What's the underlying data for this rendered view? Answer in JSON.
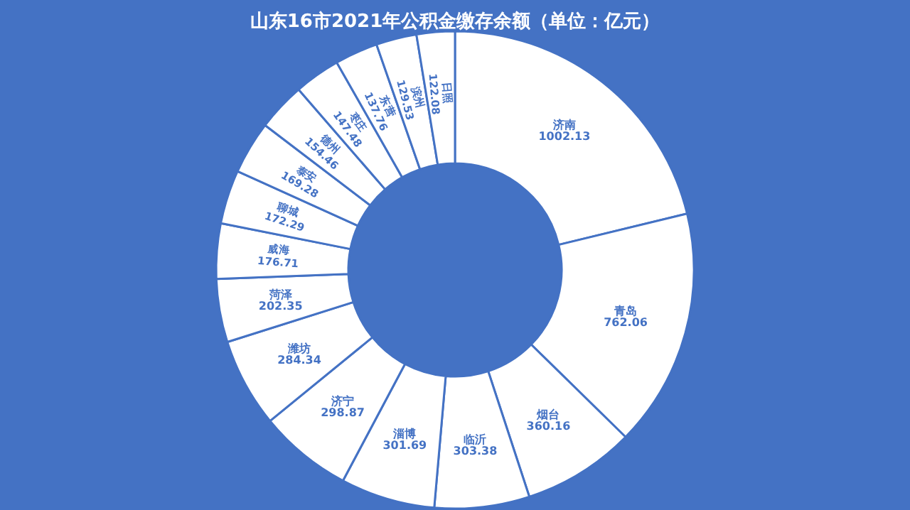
{
  "chart_data": {
    "type": "donut",
    "title": "山东16市2021年公积金缴存余额（单位：亿元）",
    "categories": [
      "济南",
      "青岛",
      "烟台",
      "临沂",
      "淄博",
      "济宁",
      "潍坊",
      "菏泽",
      "威海",
      "聊城",
      "泰安",
      "德州",
      "枣庄",
      "东营",
      "滨州",
      "日照"
    ],
    "values": [
      1002.13,
      762.06,
      360.16,
      303.38,
      301.69,
      298.87,
      284.34,
      202.35,
      176.71,
      172.29,
      169.28,
      154.46,
      147.48,
      137.76,
      129.53,
      122.08
    ],
    "colors": [
      "#ffffff",
      "#ffffff",
      "#ffffff",
      "#ffffff",
      "#ffffff",
      "#ffffff",
      "#ffffff",
      "#ffffff",
      "#ffffff",
      "#ffffff",
      "#ffffff",
      "#ffffff",
      "#ffffff",
      "#ffffff",
      "#ffffff",
      "#ffffff"
    ],
    "data_labels": true,
    "legend": false
  }
}
